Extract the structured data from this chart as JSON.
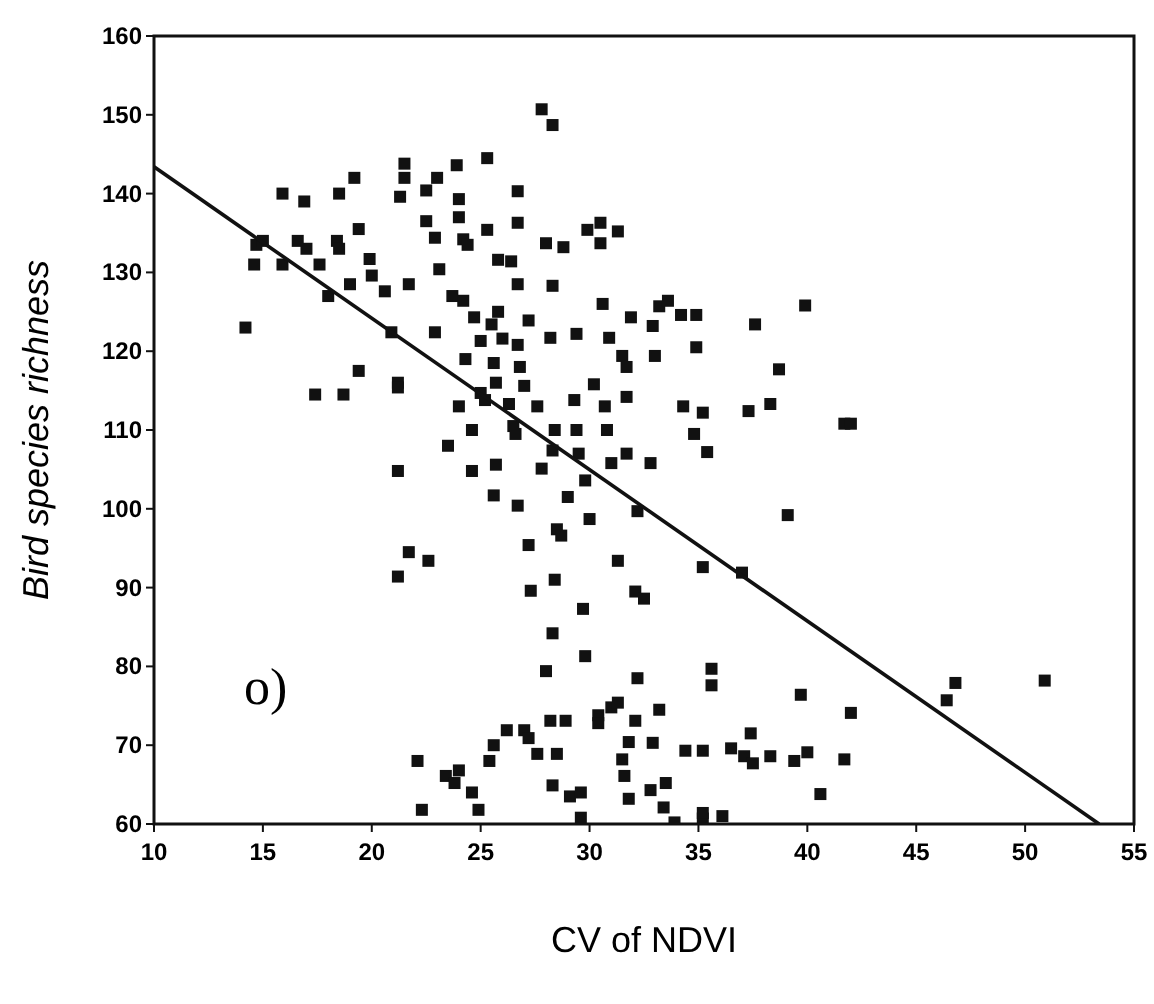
{
  "chart_data": {
    "type": "scatter",
    "xlabel": "CV of NDVI",
    "ylabel": "Bird species richness",
    "annotations": [
      "o)"
    ],
    "xlim": [
      10,
      55
    ],
    "ylim": [
      60,
      160
    ],
    "xticks": [
      10,
      15,
      20,
      25,
      30,
      35,
      40,
      45,
      50,
      55
    ],
    "yticks": [
      60,
      70,
      80,
      90,
      100,
      110,
      120,
      130,
      140,
      150,
      160
    ],
    "grid": false,
    "marker": "square",
    "series": [
      {
        "color": "#111111",
        "x": [
          14.2,
          14.7,
          14.6,
          15,
          15.9,
          15.9,
          16.9,
          16.6,
          17,
          17.6,
          18,
          17.4,
          18.5,
          18.4,
          18.5,
          19.2,
          19.4,
          19,
          19.4,
          18.7,
          19.9,
          20,
          20.6,
          20.9,
          21.2,
          21.2,
          21.2,
          21.2,
          21.7,
          21.5,
          21.5,
          21.3,
          21.7,
          22.6,
          22.5,
          22.5,
          23,
          22.9,
          22.9,
          23.1,
          23.5,
          23.9,
          24,
          24,
          24.2,
          24.4,
          23.7,
          24.2,
          24.3,
          24,
          24.6,
          24.6,
          24.7,
          25,
          25.3,
          25.3,
          25,
          25.2,
          25.5,
          25.8,
          25.6,
          25.7,
          25.7,
          25.6,
          25.8,
          26.4,
          26,
          26.3,
          26.8,
          26.5,
          26.6,
          26.7,
          26.7,
          26.7,
          26.7,
          26.7,
          27.2,
          27.2,
          27.3,
          27,
          27.6,
          27.8,
          28.3,
          28,
          28.3,
          28.2,
          28.4,
          28.3,
          27.8,
          28.5,
          28.7,
          28.4,
          28.3,
          28,
          28.8,
          29.4,
          29.3,
          29.4,
          29.5,
          29,
          29.8,
          30,
          29.7,
          29.8,
          29.9,
          30.5,
          30.5,
          30.2,
          30.6,
          30.7,
          30.8,
          31,
          30.9,
          31.3,
          31.3,
          31.5,
          31.7,
          31.7,
          31.7,
          31.9,
          32.2,
          32.1,
          32.5,
          32.8,
          33,
          32.9,
          33.2,
          33.6,
          34.2,
          34.9,
          34.9,
          34.3,
          35.2,
          34.8,
          35.4,
          35.2,
          37,
          37.3,
          37.6,
          38.3,
          38.7,
          39.1,
          39.9,
          41.7,
          42,
          22.1,
          22.3,
          23.4,
          23.8,
          24,
          24.6,
          24.9,
          25.4,
          25.6,
          26.2,
          27,
          27.2,
          27.6,
          28.2,
          28.3,
          28.5,
          28.9,
          29.1,
          29.6,
          29.6,
          30.4,
          30.4,
          31,
          31.3,
          31.5,
          31.6,
          31.8,
          31.8,
          32.1,
          32.2,
          32.9,
          33.2,
          32.8,
          33.5,
          33.4,
          33.9,
          34.4,
          35.2,
          35.2,
          35.2,
          35.6,
          35.6,
          36.1,
          36.5,
          37.1,
          37.4,
          37.5,
          38.3,
          39.4,
          39.7,
          40,
          40.6,
          41.7,
          42,
          46.4,
          46.8,
          50.9
        ],
        "values": [
          123,
          133.5,
          131,
          134,
          140,
          131,
          139,
          134,
          133,
          131,
          127,
          114.5,
          140,
          134,
          133,
          142,
          135.5,
          128.5,
          117.5,
          114.5,
          131.7,
          129.6,
          127.6,
          122.4,
          116,
          115.4,
          104.8,
          91.4,
          94.5,
          143.8,
          142,
          139.6,
          128.5,
          93.4,
          140.4,
          136.5,
          142,
          134.4,
          122.4,
          130.4,
          108,
          143.6,
          139.3,
          137,
          134.2,
          133.5,
          127,
          126.4,
          119,
          113,
          110,
          104.8,
          124.3,
          121.3,
          144.5,
          135.4,
          114.7,
          113.8,
          123.4,
          125,
          118.5,
          116,
          105.6,
          101.7,
          131.6,
          131.4,
          121.6,
          113.3,
          118,
          110.5,
          109.5,
          100.4,
          140.3,
          136.3,
          128.5,
          120.8,
          123.9,
          95.4,
          89.6,
          115.6,
          113,
          150.7,
          148.7,
          133.7,
          128.3,
          121.7,
          110,
          107.4,
          105.1,
          97.4,
          96.6,
          91,
          84.2,
          79.4,
          133.2,
          122.2,
          113.8,
          110,
          107,
          101.5,
          103.6,
          98.7,
          87.3,
          81.3,
          135.4,
          136.3,
          133.7,
          115.8,
          126,
          113,
          110,
          105.8,
          121.7,
          135.2,
          93.4,
          119.4,
          118,
          114.2,
          107,
          124.3,
          99.7,
          89.5,
          88.6,
          105.8,
          119.4,
          123.2,
          125.7,
          126.4,
          124.6,
          124.6,
          120.5,
          113,
          112.2,
          109.5,
          107.2,
          92.6,
          91.9,
          112.4,
          123.4,
          113.3,
          117.7,
          99.2,
          125.8,
          110.8,
          110.8,
          68,
          61.8,
          66.1,
          65.2,
          66.8,
          64,
          61.8,
          68,
          70,
          71.9,
          71.9,
          70.9,
          68.9,
          73.1,
          64.9,
          68.9,
          73.1,
          63.5,
          64,
          60.8,
          73.8,
          72.8,
          74.8,
          75.4,
          68.2,
          66.1,
          63.2,
          70.4,
          73.1,
          78.5,
          70.3,
          74.5,
          64.3,
          65.2,
          62.1,
          60.2,
          69.3,
          69.3,
          60.7,
          61.4,
          79.7,
          77.6,
          61,
          69.6,
          68.6,
          71.5,
          67.7,
          68.6,
          68,
          76.4,
          69.1,
          63.8,
          68.2,
          74.1,
          75.7,
          77.9,
          78.2
        ]
      },
      {
        "type": "line",
        "color": "#111111",
        "marker": "none",
        "x": [
          10,
          53.4
        ],
        "values": [
          143.4,
          60
        ]
      }
    ]
  }
}
